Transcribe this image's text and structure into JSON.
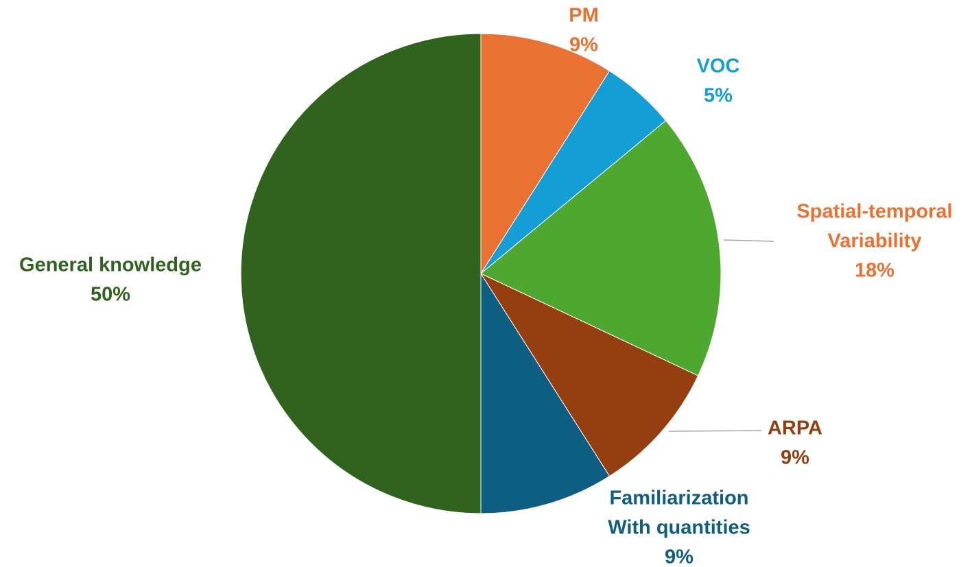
{
  "chart_data": {
    "type": "pie",
    "start_angle_deg": 0,
    "direction": "clockwise",
    "slices": [
      {
        "name": "PM",
        "label_lines": [
          "PM"
        ],
        "value": 9,
        "percent_label": "9%",
        "color": "#e97132",
        "label_color": "#e97132"
      },
      {
        "name": "VOC",
        "label_lines": [
          "VOC"
        ],
        "value": 5,
        "percent_label": "5%",
        "color": "#139ed6",
        "label_color": "#139ed6"
      },
      {
        "name": "Spatial-temporal Variability",
        "label_lines": [
          "Spatial-temporal",
          "Variability"
        ],
        "value": 18,
        "percent_label": "18%",
        "color": "#4ea72e",
        "label_color": "#e97132"
      },
      {
        "name": "ARPA",
        "label_lines": [
          "ARPA"
        ],
        "value": 9,
        "percent_label": "9%",
        "color": "#953f11",
        "label_color": "#953f11"
      },
      {
        "name": "Familiarization With quantities",
        "label_lines": [
          "Familiarization",
          "With quantities"
        ],
        "value": 9,
        "percent_label": "9%",
        "color": "#0e5e81",
        "label_color": "#0e5e81"
      },
      {
        "name": "General knowledge",
        "label_lines": [
          "General knowledge"
        ],
        "value": 50,
        "percent_label": "50%",
        "color": "#2f631e",
        "label_color": "#2f631e"
      }
    ],
    "legend": "none",
    "labels": "outside"
  }
}
